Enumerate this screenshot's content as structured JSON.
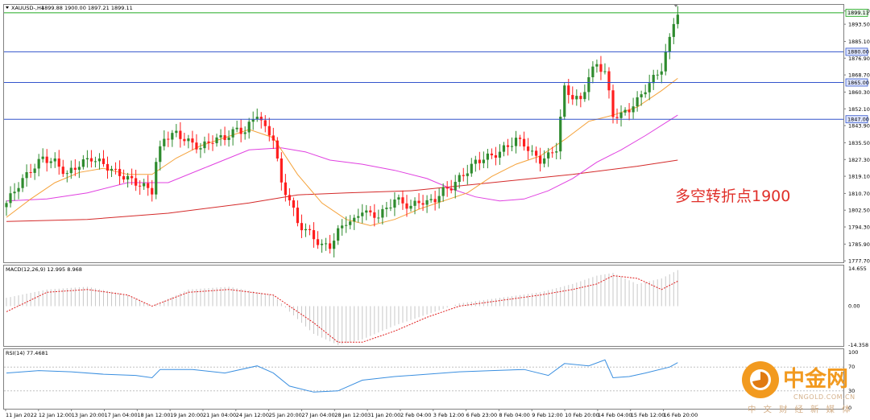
{
  "header": {
    "symbol": "XAUUSD-,H4",
    "ohlc": "1899.88 1900.00 1897.21 1899.11"
  },
  "annotation": {
    "text": "多空转折点1900",
    "color": "#e0302a"
  },
  "watermark": {
    "cn": "中金网",
    "en": "CNGOLD.COM.CN",
    "sub": "中文财经新媒体",
    "accent": "#f29a1f",
    "text_color": "#d4b08a"
  },
  "colors": {
    "bull": "#2e8b2e",
    "bear": "#ff1e1e",
    "ma_fast": "#f5a23a",
    "ma_mid": "#e040e0",
    "ma_slow": "#d42a2a",
    "level_line": "#3355cc",
    "level_line_top": "#22aa22",
    "macd_bar": "#c8c8c8",
    "macd_signal": "#e02020",
    "rsi_line": "#3a8fe0"
  },
  "chart_data": [
    {
      "type": "candlestick",
      "name": "price",
      "title": "XAUUSD-,H4",
      "ylim": [
        1777.0,
        1903.0
      ],
      "y_ticks": [
        {
          "value": 1900.0,
          "label": "1900.00"
        },
        {
          "value": 1893.5,
          "label": "1893.50"
        },
        {
          "value": 1885.1,
          "label": "1885.10"
        },
        {
          "value": 1876.9,
          "label": "1876.90"
        },
        {
          "value": 1868.7,
          "label": "1868.70"
        },
        {
          "value": 1860.3,
          "label": "1860.30"
        },
        {
          "value": 1852.1,
          "label": "1852.10"
        },
        {
          "value": 1843.9,
          "label": "1843.90"
        },
        {
          "value": 1835.5,
          "label": "1835.50"
        },
        {
          "value": 1827.3,
          "label": "1827.30"
        },
        {
          "value": 1819.1,
          "label": "1819.10"
        },
        {
          "value": 1810.7,
          "label": "1810.70"
        },
        {
          "value": 1802.5,
          "label": "1802.50"
        },
        {
          "value": 1794.3,
          "label": "1794.30"
        },
        {
          "value": 1785.9,
          "label": "1785.90"
        },
        {
          "value": 1777.7,
          "label": "1777.70"
        }
      ],
      "levels": [
        {
          "value": 1899.11,
          "label": "1899.11",
          "kind": "top"
        },
        {
          "value": 1880.0,
          "label": "1880.00",
          "kind": "level"
        },
        {
          "value": 1865.0,
          "label": "1865.00",
          "kind": "level"
        },
        {
          "value": 1847.0,
          "label": "1847.00",
          "kind": "level"
        }
      ],
      "x_labels": [
        "11 Jan 2022",
        "12 Jan 12:00",
        "13 Jan 20:00",
        "17 Jan 04:00",
        "18 Jan 12:00",
        "19 Jan 20:00",
        "21 Jan 04:00",
        "24 Jan 12:00",
        "25 Jan 20:00",
        "27 Jan 04:00",
        "28 Jan 12:00",
        "31 Jan 20:00",
        "2 Feb 04:00",
        "3 Feb 12:00",
        "6 Feb 23:00",
        "8 Feb 04:00",
        "9 Feb 12:00",
        "10 Feb 20:00",
        "14 Feb 04:00",
        "15 Feb 12:00",
        "16 Feb 20:00"
      ],
      "close_path": [
        [
          0,
          1806
        ],
        [
          3,
          1815
        ],
        [
          6,
          1822
        ],
        [
          9,
          1828
        ],
        [
          12,
          1826
        ],
        [
          15,
          1820
        ],
        [
          18,
          1825
        ],
        [
          21,
          1828
        ],
        [
          24,
          1825
        ],
        [
          27,
          1821
        ],
        [
          30,
          1818
        ],
        [
          32,
          1816
        ],
        [
          34,
          1814
        ],
        [
          36,
          1812
        ],
        [
          37,
          1826
        ],
        [
          39,
          1838
        ],
        [
          42,
          1840
        ],
        [
          45,
          1836
        ],
        [
          48,
          1833
        ],
        [
          51,
          1837
        ],
        [
          54,
          1838
        ],
        [
          57,
          1842
        ],
        [
          59,
          1841
        ],
        [
          62,
          1850
        ],
        [
          64,
          1842
        ],
        [
          66,
          1838
        ],
        [
          68,
          1815
        ],
        [
          70,
          1808
        ],
        [
          72,
          1796
        ],
        [
          74,
          1793
        ],
        [
          76,
          1789
        ],
        [
          78,
          1785
        ],
        [
          80,
          1785
        ],
        [
          82,
          1792
        ],
        [
          84,
          1797
        ],
        [
          86,
          1797
        ],
        [
          88,
          1803
        ],
        [
          90,
          1800
        ],
        [
          92,
          1800
        ],
        [
          94,
          1803
        ],
        [
          96,
          1808
        ],
        [
          98,
          1806
        ],
        [
          100,
          1804
        ],
        [
          102,
          1807
        ],
        [
          104,
          1806
        ],
        [
          106,
          1808
        ],
        [
          108,
          1812
        ],
        [
          110,
          1814
        ],
        [
          112,
          1818
        ],
        [
          114,
          1822
        ],
        [
          116,
          1826
        ],
        [
          118,
          1828
        ],
        [
          120,
          1829
        ],
        [
          122,
          1831
        ],
        [
          124,
          1834
        ],
        [
          126,
          1837
        ],
        [
          128,
          1835
        ],
        [
          130,
          1830
        ],
        [
          132,
          1827
        ],
        [
          134,
          1829
        ],
        [
          136,
          1833
        ],
        [
          138,
          1862
        ],
        [
          140,
          1858
        ],
        [
          142,
          1856
        ],
        [
          144,
          1868
        ],
        [
          146,
          1874
        ],
        [
          148,
          1870
        ],
        [
          150,
          1849
        ],
        [
          152,
          1849
        ],
        [
          154,
          1852
        ],
        [
          156,
          1856
        ],
        [
          158,
          1862
        ],
        [
          160,
          1867
        ],
        [
          162,
          1872
        ],
        [
          164,
          1886
        ],
        [
          165,
          1895
        ],
        [
          166,
          1899.11
        ]
      ],
      "ma_fast_path": [
        [
          0,
          1799
        ],
        [
          6,
          1808
        ],
        [
          12,
          1816
        ],
        [
          18,
          1821
        ],
        [
          24,
          1823
        ],
        [
          30,
          1820
        ],
        [
          36,
          1820
        ],
        [
          42,
          1828
        ],
        [
          48,
          1834
        ],
        [
          54,
          1838
        ],
        [
          60,
          1842
        ],
        [
          66,
          1838
        ],
        [
          72,
          1820
        ],
        [
          78,
          1806
        ],
        [
          84,
          1798
        ],
        [
          90,
          1795
        ],
        [
          96,
          1798
        ],
        [
          102,
          1803
        ],
        [
          108,
          1807
        ],
        [
          114,
          1811
        ],
        [
          120,
          1819
        ],
        [
          126,
          1825
        ],
        [
          132,
          1829
        ],
        [
          138,
          1837
        ],
        [
          144,
          1846
        ],
        [
          150,
          1849
        ],
        [
          156,
          1853
        ],
        [
          162,
          1861
        ],
        [
          166,
          1867
        ]
      ],
      "ma_mid_path": [
        [
          0,
          1807
        ],
        [
          10,
          1808
        ],
        [
          20,
          1811
        ],
        [
          30,
          1816
        ],
        [
          40,
          1816
        ],
        [
          50,
          1824
        ],
        [
          60,
          1832
        ],
        [
          68,
          1833
        ],
        [
          74,
          1831
        ],
        [
          80,
          1827
        ],
        [
          88,
          1825
        ],
        [
          96,
          1822
        ],
        [
          104,
          1818
        ],
        [
          110,
          1813
        ],
        [
          116,
          1809
        ],
        [
          122,
          1807
        ],
        [
          128,
          1808
        ],
        [
          134,
          1812
        ],
        [
          140,
          1818
        ],
        [
          146,
          1826
        ],
        [
          152,
          1832
        ],
        [
          158,
          1839
        ],
        [
          166,
          1849
        ]
      ],
      "ma_slow_path": [
        [
          0,
          1797
        ],
        [
          20,
          1798
        ],
        [
          40,
          1801
        ],
        [
          60,
          1806
        ],
        [
          72,
          1810
        ],
        [
          84,
          1811
        ],
        [
          100,
          1812
        ],
        [
          120,
          1816
        ],
        [
          140,
          1820
        ],
        [
          156,
          1824
        ],
        [
          166,
          1827
        ]
      ]
    },
    {
      "type": "bar",
      "name": "macd",
      "title": "MACD(12,26,9) 12.995 8.968",
      "ylim": [
        -14.358,
        14.655
      ],
      "y_ticks": [
        {
          "value": 14.655,
          "label": "14.655"
        },
        {
          "value": 0.0,
          "label": "0.00"
        },
        {
          "value": -14.358,
          "label": "-14.358"
        }
      ],
      "macd_path": [
        [
          0,
          3
        ],
        [
          10,
          6
        ],
        [
          20,
          7
        ],
        [
          30,
          4
        ],
        [
          36,
          0
        ],
        [
          45,
          6
        ],
        [
          55,
          7
        ],
        [
          66,
          4
        ],
        [
          70,
          -2
        ],
        [
          76,
          -10
        ],
        [
          82,
          -14
        ],
        [
          88,
          -12
        ],
        [
          96,
          -7
        ],
        [
          104,
          -3
        ],
        [
          112,
          1
        ],
        [
          122,
          3
        ],
        [
          132,
          5
        ],
        [
          140,
          8
        ],
        [
          146,
          11
        ],
        [
          150,
          12
        ],
        [
          156,
          8
        ],
        [
          162,
          10
        ],
        [
          166,
          13
        ]
      ],
      "signal_path": [
        [
          0,
          -2
        ],
        [
          10,
          5
        ],
        [
          20,
          6
        ],
        [
          30,
          4
        ],
        [
          36,
          0
        ],
        [
          45,
          5
        ],
        [
          55,
          6
        ],
        [
          66,
          4
        ],
        [
          70,
          0
        ],
        [
          76,
          -6
        ],
        [
          82,
          -13
        ],
        [
          88,
          -13
        ],
        [
          96,
          -9
        ],
        [
          104,
          -4
        ],
        [
          112,
          0
        ],
        [
          122,
          2
        ],
        [
          132,
          4
        ],
        [
          140,
          6
        ],
        [
          146,
          8
        ],
        [
          150,
          11
        ],
        [
          156,
          10
        ],
        [
          162,
          6
        ],
        [
          166,
          9
        ]
      ]
    },
    {
      "type": "line",
      "name": "rsi",
      "title": "RSI(14) 77.4681",
      "ylim": [
        0,
        100
      ],
      "y_ticks": [
        {
          "value": 100,
          "label": "100"
        },
        {
          "value": 70,
          "label": "70"
        },
        {
          "value": 30,
          "label": "30"
        },
        {
          "value": 0,
          "label": "0"
        }
      ],
      "rsi_path": [
        [
          0,
          60
        ],
        [
          8,
          64
        ],
        [
          16,
          62
        ],
        [
          24,
          58
        ],
        [
          32,
          56
        ],
        [
          36,
          52
        ],
        [
          38,
          66
        ],
        [
          46,
          66
        ],
        [
          54,
          60
        ],
        [
          62,
          72
        ],
        [
          66,
          60
        ],
        [
          70,
          38
        ],
        [
          76,
          28
        ],
        [
          82,
          30
        ],
        [
          88,
          48
        ],
        [
          96,
          54
        ],
        [
          104,
          58
        ],
        [
          112,
          62
        ],
        [
          120,
          64
        ],
        [
          128,
          66
        ],
        [
          134,
          56
        ],
        [
          138,
          76
        ],
        [
          144,
          72
        ],
        [
          148,
          82
        ],
        [
          150,
          52
        ],
        [
          154,
          54
        ],
        [
          158,
          60
        ],
        [
          164,
          70
        ],
        [
          166,
          77.47
        ]
      ]
    }
  ]
}
